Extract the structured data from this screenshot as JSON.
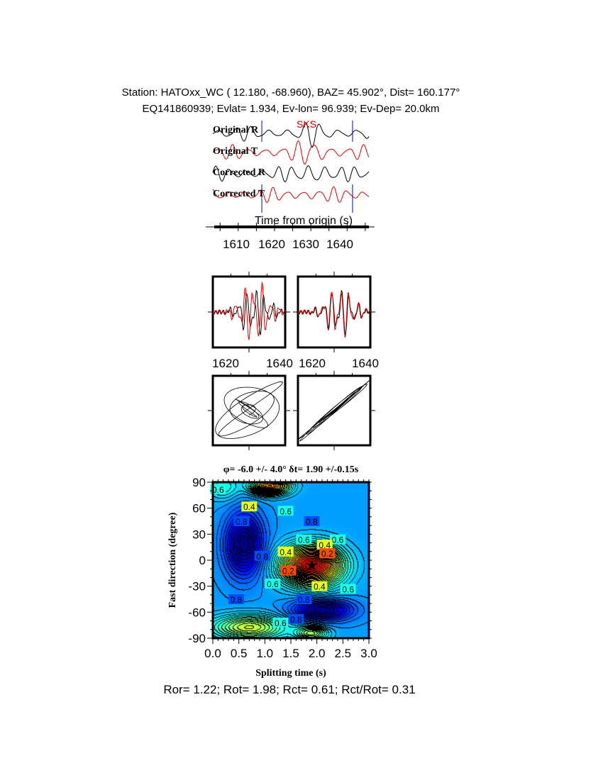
{
  "header": {
    "line1": "Station: HATOxx_WC (  12.180,  -68.960), BAZ=   45.902°, Dist=  160.177°",
    "line2": "EQ141860939; Evlat=   1.934, Ev-lon=  96.939; Ev-Dep= 20.0km"
  },
  "colors": {
    "radial": "#000000",
    "transverse": "#e00000",
    "window_marker": "#0000cc",
    "phase_label": "#e00000"
  },
  "chart_data": [
    {
      "type": "line",
      "panel": "traces",
      "phase_label": "SKS",
      "series": [
        {
          "name": "Original R"
        },
        {
          "name": "Original T"
        },
        {
          "name": "Corrected R"
        },
        {
          "name": "Corrected T"
        }
      ],
      "xlabel": "Time from origin (s)",
      "xticks": [
        "1610",
        "1620",
        "1630",
        "1640"
      ],
      "xlim": [
        1603,
        1646
      ],
      "window": [
        1616.5,
        1641.5
      ]
    },
    {
      "type": "line",
      "panel": "waveform-overlay-original",
      "xticks": [
        "1620",
        "1640"
      ],
      "xlim": [
        1616.5,
        1641.5
      ]
    },
    {
      "type": "line",
      "panel": "waveform-overlay-corrected",
      "xticks": [
        "1620",
        "1640"
      ],
      "xlim": [
        1616.5,
        1641.5
      ]
    },
    {
      "type": "line",
      "panel": "particle-motion-original"
    },
    {
      "type": "line",
      "panel": "particle-motion-corrected"
    },
    {
      "type": "heatmap",
      "panel": "grid-search",
      "title": "φ= -6.0 +/- 4.0° δt= 1.90 +/-0.15s",
      "xlabel": "Splitting time (s)",
      "ylabel": "Fast direction (degree)",
      "xlim": [
        0,
        3
      ],
      "ylim": [
        -90,
        90
      ],
      "xticks": [
        "0.0",
        "0.5",
        "1.0",
        "1.5",
        "2.0",
        "2.5",
        "3.0"
      ],
      "yticks": [
        "90",
        "60",
        "30",
        "0",
        "-30",
        "-60",
        "-90"
      ],
      "best": {
        "dt": 1.9,
        "phi": -6.0
      },
      "contour_labels": [
        {
          "text": "0.4",
          "dt": 0.7,
          "phi": 62
        },
        {
          "text": "0.6",
          "dt": 1.4,
          "phi": 57
        },
        {
          "text": "0.8",
          "dt": 0.55,
          "phi": 45
        },
        {
          "text": "0.8",
          "dt": 1.9,
          "phi": 45
        },
        {
          "text": "0.6",
          "dt": 1.75,
          "phi": 24
        },
        {
          "text": "0.6",
          "dt": 2.4,
          "phi": 24
        },
        {
          "text": "0.4",
          "dt": 2.15,
          "phi": 18
        },
        {
          "text": "0.2",
          "dt": 2.2,
          "phi": 8
        },
        {
          "text": "0.4",
          "dt": 1.4,
          "phi": 10
        },
        {
          "text": "0.8",
          "dt": 0.95,
          "phi": 5
        },
        {
          "text": "0.2",
          "dt": 1.45,
          "phi": -12
        },
        {
          "text": "0.6",
          "dt": 1.15,
          "phi": -27
        },
        {
          "text": "0.4",
          "dt": 2.05,
          "phi": -30
        },
        {
          "text": "0.6",
          "dt": 2.6,
          "phi": -33
        },
        {
          "text": "0.8",
          "dt": 0.45,
          "phi": -45
        },
        {
          "text": "0.8",
          "dt": 1.75,
          "phi": -45
        },
        {
          "text": "0.8",
          "dt": 1.6,
          "phi": -68
        },
        {
          "text": "0.6",
          "dt": 1.3,
          "phi": -72
        },
        {
          "text": "0.6",
          "dt": 0.1,
          "phi": 82
        }
      ]
    }
  ],
  "footer": "Ror= 1.22; Rot= 1.98; Rct= 0.61; Rct/Rot= 0.31"
}
